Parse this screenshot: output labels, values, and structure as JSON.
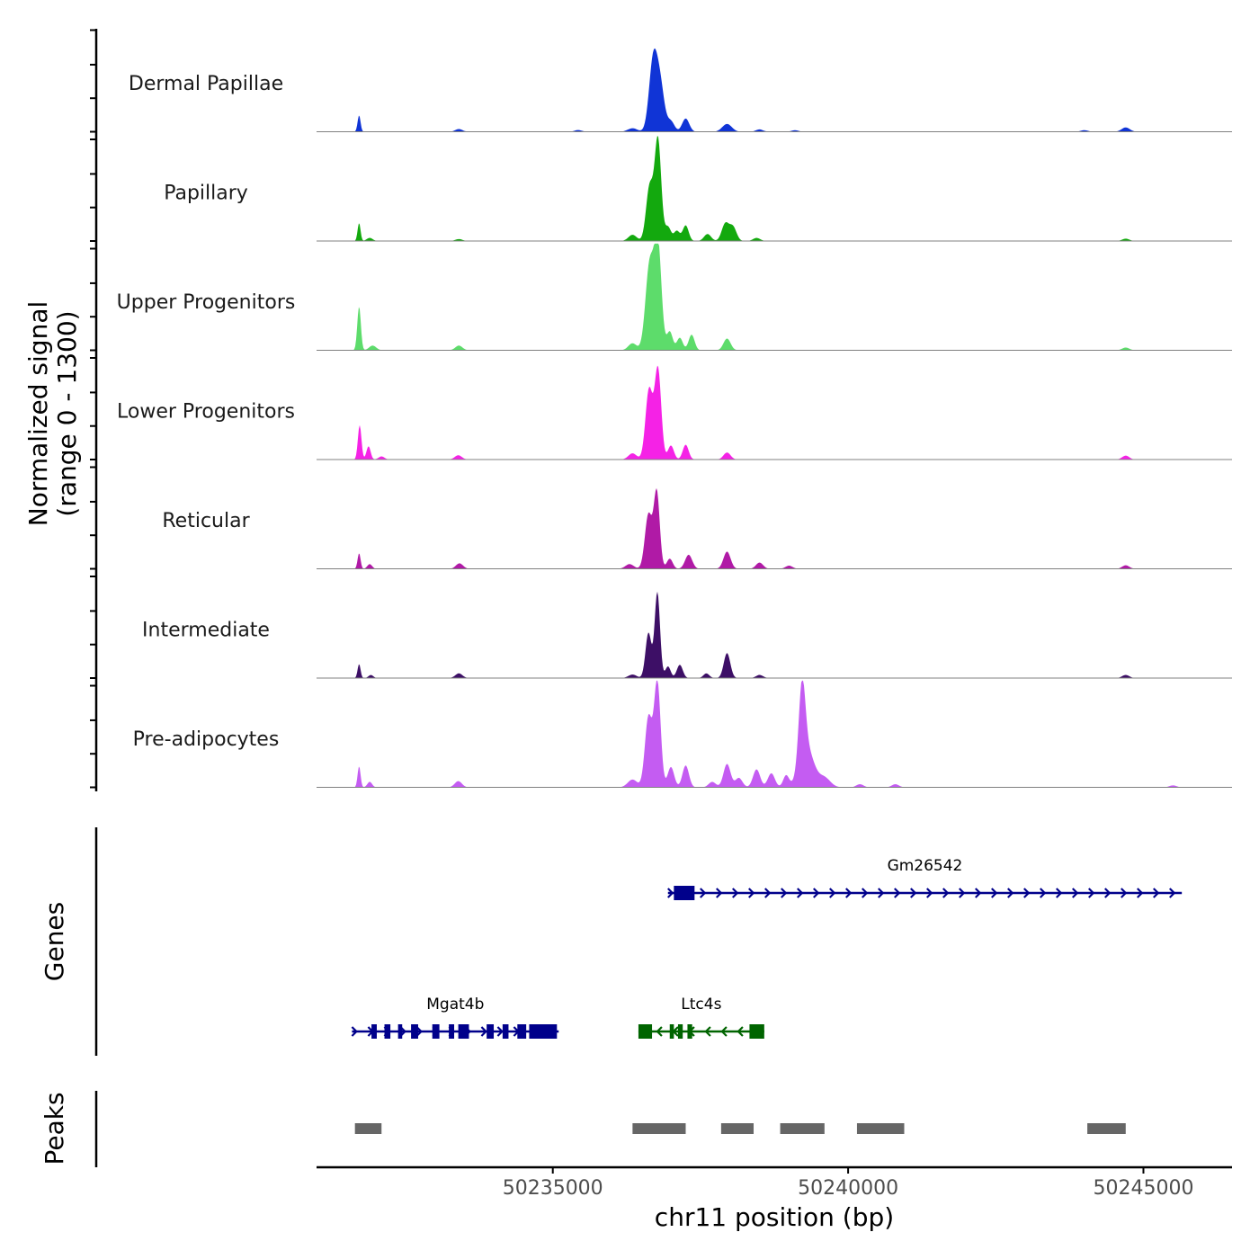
{
  "chart_data": {
    "type": "area",
    "title": "",
    "chromosome": "chr11",
    "xlabel": "chr11 position (bp)",
    "ylabel_line1": "Normalized signal",
    "ylabel_line2": "(range 0 - 1300)",
    "xlim": [
      50231000,
      50246500
    ],
    "ylim": [
      0,
      1300
    ],
    "x_ticks": [
      50235000,
      50240000,
      50245000
    ],
    "x_tick_labels": [
      "50235000",
      "50240000",
      "50245000"
    ],
    "tracks": [
      {
        "name": "Dermal Papillae",
        "color": "#1034d6",
        "peaks": [
          [
            50231720,
            210,
            25
          ],
          [
            50233410,
            35,
            60
          ],
          [
            50235430,
            22,
            60
          ],
          [
            50236350,
            45,
            80
          ],
          [
            50236700,
            900,
            70
          ],
          [
            50236820,
            560,
            70
          ],
          [
            50237000,
            130,
            60
          ],
          [
            50237250,
            170,
            60
          ],
          [
            50237950,
            100,
            80
          ],
          [
            50238500,
            30,
            60
          ],
          [
            50239100,
            20,
            60
          ],
          [
            50244000,
            20,
            60
          ],
          [
            50244700,
            55,
            70
          ]
        ]
      },
      {
        "name": "Papillary",
        "color": "#13a90e",
        "peaks": [
          [
            50231720,
            230,
            25
          ],
          [
            50231900,
            40,
            50
          ],
          [
            50233410,
            25,
            60
          ],
          [
            50236350,
            80,
            70
          ],
          [
            50236640,
            700,
            60
          ],
          [
            50236780,
            1300,
            55
          ],
          [
            50236950,
            180,
            50
          ],
          [
            50237100,
            130,
            50
          ],
          [
            50237250,
            200,
            50
          ],
          [
            50237620,
            90,
            60
          ],
          [
            50237920,
            220,
            60
          ],
          [
            50238050,
            180,
            60
          ],
          [
            50238450,
            40,
            60
          ],
          [
            50244700,
            30,
            60
          ]
        ]
      },
      {
        "name": "Upper Progenitors",
        "color": "#5ddc6b",
        "peaks": [
          [
            50231720,
            560,
            30
          ],
          [
            50231950,
            60,
            60
          ],
          [
            50233410,
            60,
            60
          ],
          [
            50236350,
            90,
            70
          ],
          [
            50236640,
            1100,
            70
          ],
          [
            50236780,
            1340,
            60
          ],
          [
            50236980,
            240,
            50
          ],
          [
            50237150,
            160,
            50
          ],
          [
            50237350,
            200,
            50
          ],
          [
            50237950,
            150,
            60
          ],
          [
            50244700,
            35,
            60
          ]
        ]
      },
      {
        "name": "Lower Progenitors",
        "color": "#f522e6",
        "peaks": [
          [
            50231730,
            440,
            30
          ],
          [
            50231880,
            170,
            35
          ],
          [
            50232100,
            40,
            50
          ],
          [
            50233400,
            55,
            60
          ],
          [
            50236350,
            80,
            70
          ],
          [
            50236630,
            900,
            60
          ],
          [
            50236780,
            1160,
            55
          ],
          [
            50237000,
            180,
            50
          ],
          [
            50237250,
            190,
            50
          ],
          [
            50237950,
            90,
            60
          ],
          [
            50244700,
            50,
            60
          ]
        ]
      },
      {
        "name": "Reticular",
        "color": "#b01aa6",
        "peaks": [
          [
            50231720,
            200,
            25
          ],
          [
            50231900,
            60,
            40
          ],
          [
            50233420,
            70,
            60
          ],
          [
            50236300,
            60,
            70
          ],
          [
            50236620,
            700,
            60
          ],
          [
            50236760,
            980,
            50
          ],
          [
            50236980,
            130,
            50
          ],
          [
            50237300,
            180,
            60
          ],
          [
            50237950,
            220,
            60
          ],
          [
            50238500,
            80,
            60
          ],
          [
            50239000,
            40,
            60
          ],
          [
            50244700,
            45,
            60
          ]
        ]
      },
      {
        "name": "Intermediate",
        "color": "#3d0f66",
        "peaks": [
          [
            50231720,
            180,
            25
          ],
          [
            50231920,
            40,
            40
          ],
          [
            50233410,
            60,
            60
          ],
          [
            50236350,
            45,
            70
          ],
          [
            50236620,
            580,
            50
          ],
          [
            50236770,
            1100,
            45
          ],
          [
            50236950,
            150,
            45
          ],
          [
            50237150,
            170,
            50
          ],
          [
            50237600,
            60,
            50
          ],
          [
            50237950,
            320,
            55
          ],
          [
            50238500,
            40,
            60
          ],
          [
            50244700,
            40,
            60
          ]
        ]
      },
      {
        "name": "Pre-adipocytes",
        "color": "#c45cf2",
        "peaks": [
          [
            50231720,
            270,
            25
          ],
          [
            50231900,
            70,
            40
          ],
          [
            50233400,
            80,
            60
          ],
          [
            50236350,
            100,
            80
          ],
          [
            50236620,
            900,
            60
          ],
          [
            50236770,
            1350,
            55
          ],
          [
            50237000,
            260,
            55
          ],
          [
            50237250,
            280,
            55
          ],
          [
            50237700,
            70,
            60
          ],
          [
            50237950,
            300,
            60
          ],
          [
            50238150,
            120,
            60
          ],
          [
            50238450,
            230,
            60
          ],
          [
            50238700,
            180,
            60
          ],
          [
            50238950,
            150,
            50
          ],
          [
            50239220,
            1000,
            55
          ],
          [
            50239300,
            500,
            120
          ],
          [
            50239600,
            120,
            100
          ],
          [
            50240200,
            40,
            60
          ],
          [
            50240800,
            40,
            60
          ],
          [
            50245500,
            25,
            60
          ]
        ]
      }
    ],
    "genes": [
      {
        "name": "Gm26542",
        "strand": "+",
        "color": "#00008b",
        "start": 50236950,
        "end": 50245650,
        "exons": [
          [
            50237050,
            50237400
          ]
        ]
      },
      {
        "name": "Mgat4b",
        "strand": "+",
        "color": "#00008b",
        "start": 50231600,
        "end": 50235100,
        "exons": [
          [
            50231930,
            50232020
          ],
          [
            50232150,
            50232250
          ],
          [
            50232380,
            50232450
          ],
          [
            50232600,
            50232720
          ],
          [
            50232960,
            50233080
          ],
          [
            50233240,
            50233330
          ],
          [
            50233400,
            50233580
          ],
          [
            50233880,
            50234000
          ],
          [
            50234150,
            50234250
          ],
          [
            50234400,
            50234550
          ],
          [
            50234600,
            50235070
          ]
        ]
      },
      {
        "name": "Ltc4s",
        "strand": "-",
        "color": "#006400",
        "start": 50236450,
        "end": 50238580,
        "exons": [
          [
            50236450,
            50236680
          ],
          [
            50236980,
            50237050
          ],
          [
            50237120,
            50237200
          ],
          [
            50237280,
            50237360
          ],
          [
            50238330,
            50238580
          ]
        ]
      }
    ],
    "peaks_track_label": "Peaks",
    "genes_track_label": "Genes",
    "peak_regions": [
      [
        50231650,
        50232100
      ],
      [
        50236350,
        50237250
      ],
      [
        50237850,
        50238400
      ],
      [
        50238850,
        50239600
      ],
      [
        50240150,
        50240950
      ],
      [
        50244050,
        50244700
      ]
    ]
  }
}
